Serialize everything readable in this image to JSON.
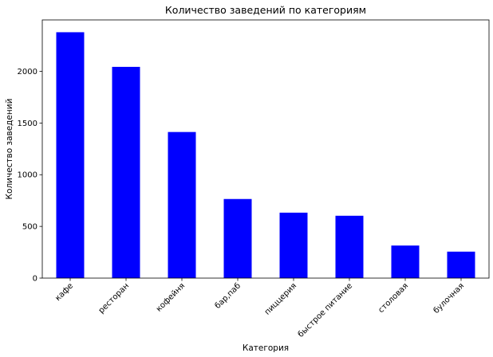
{
  "chart_data": {
    "type": "bar",
    "title": "Количество заведений по категориям",
    "xlabel": "Категория",
    "ylabel": "Количество заведений",
    "categories": [
      "кафе",
      "ресторан",
      "кофейня",
      "бар,паб",
      "пиццерия",
      "быстрое питание",
      "столовая",
      "булочная"
    ],
    "values": [
      2378,
      2043,
      1413,
      765,
      633,
      603,
      315,
      256
    ],
    "yticks": [
      0,
      500,
      1000,
      1500,
      2000
    ],
    "ylim": [
      0,
      2497
    ],
    "bar_color": "#0000ff",
    "grid": false,
    "legend": false
  }
}
